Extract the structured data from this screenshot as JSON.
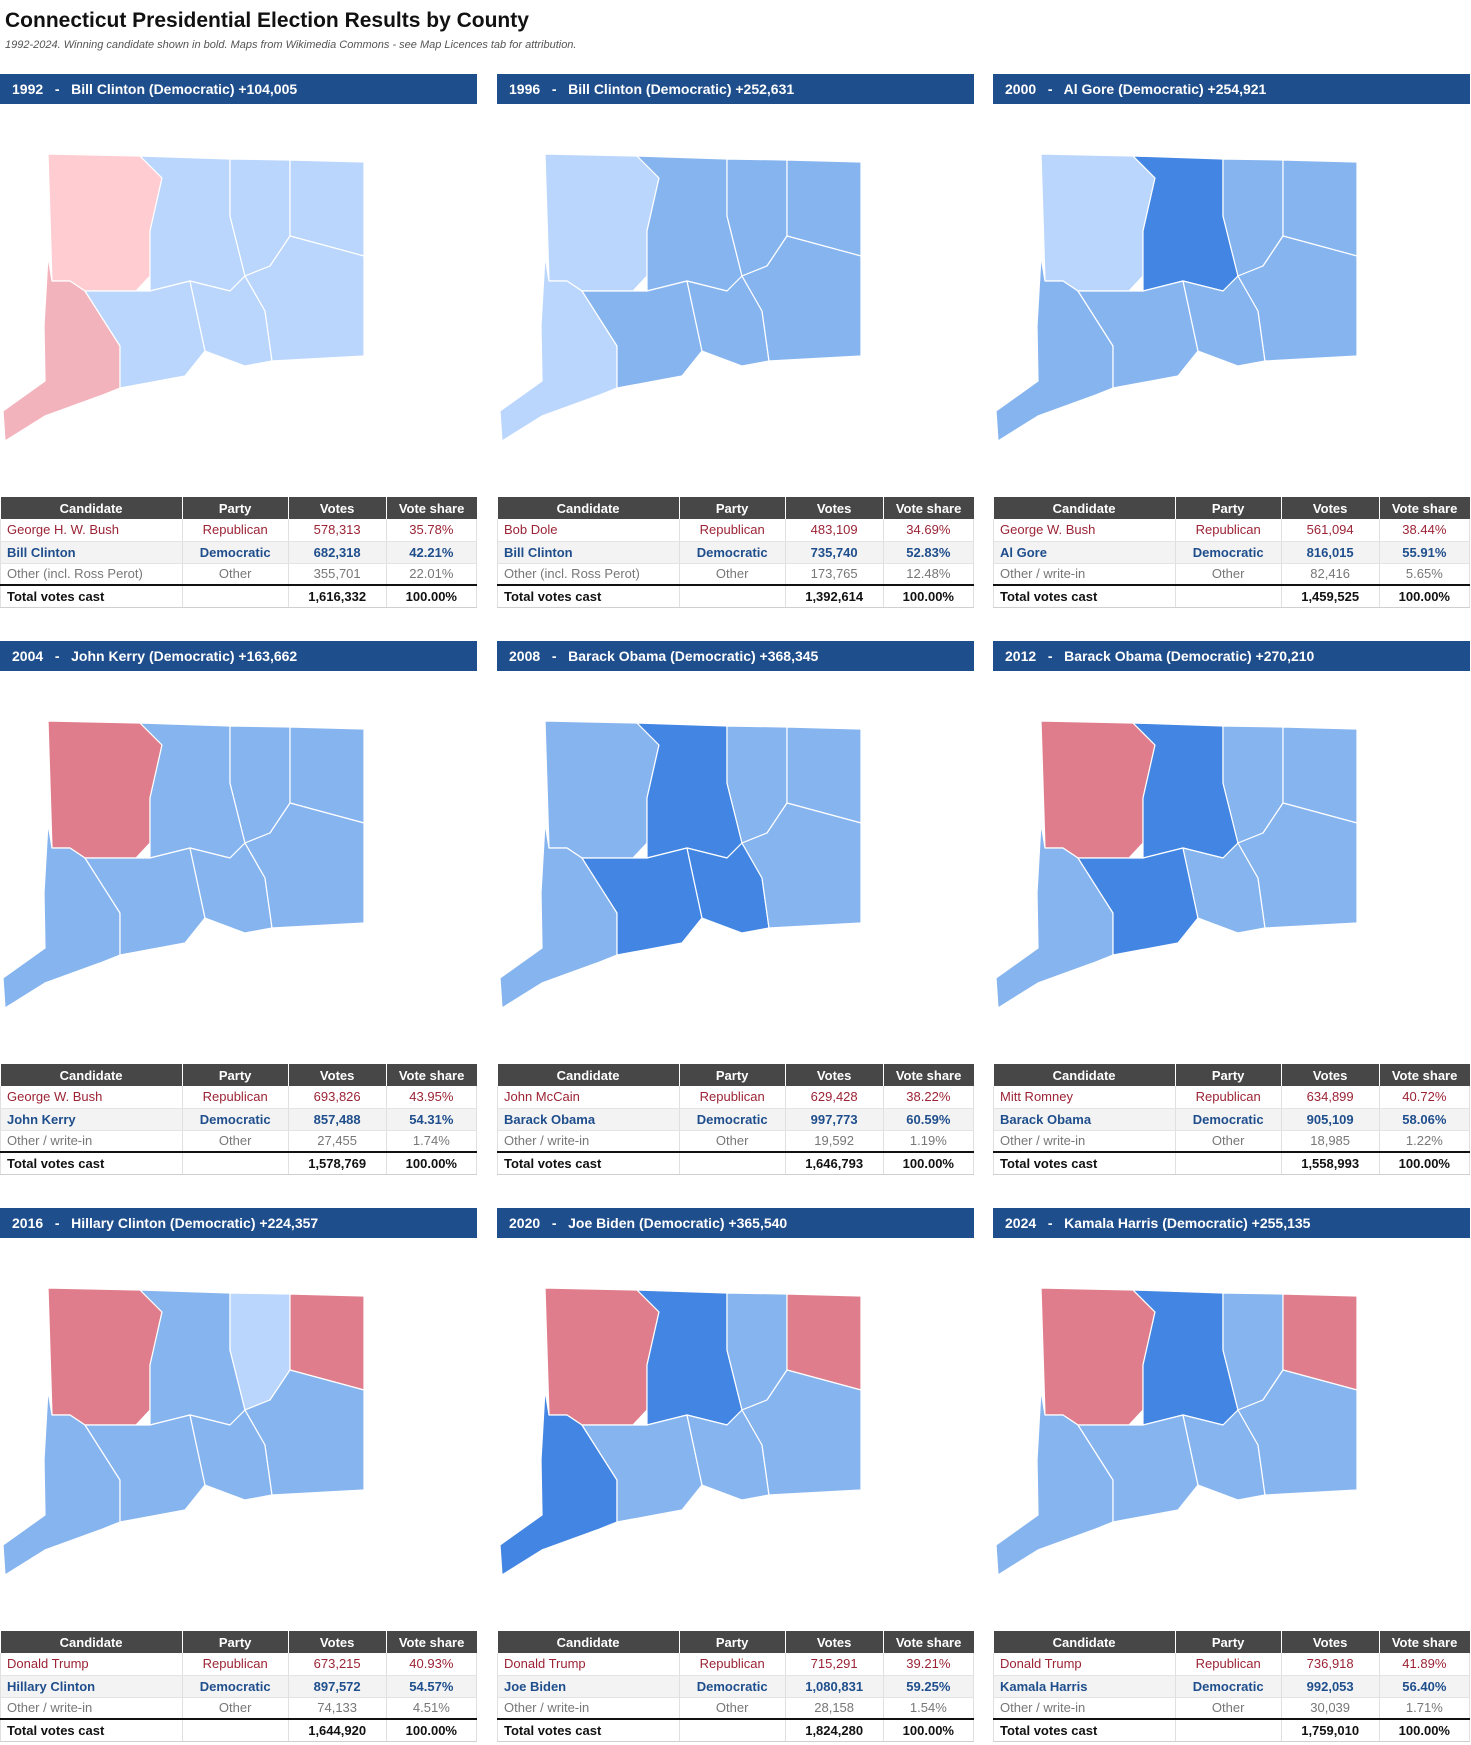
{
  "page": {
    "title": "Connecticut Presidential Election Results by County",
    "subtitle": "1992-2024. Winning candidate shown in bold. Maps from Wikimedia Commons - see Map Licences tab for attribution."
  },
  "table_headers": {
    "candidate": "Candidate",
    "party": "Party",
    "votes": "Votes",
    "share": "Vote share"
  },
  "colors": {
    "dem_dark": "#4385e2",
    "dem_mid": "#86b4ef",
    "dem_light": "#bad6fc",
    "rep_dark": "#e07d8c",
    "rep_light": "#f2b3bd",
    "rep_lightest": "#ffccd2",
    "banner": "#1f4e8c",
    "header_row": "#474747"
  },
  "elections": [
    {
      "banner": "1992   -   Bill Clinton (Democratic) +104,005",
      "counties": {
        "litchfield": "rep_lightest",
        "hartford": "dem_light",
        "tolland": "dem_light",
        "windham": "dem_light",
        "fairfield": "rep_light",
        "newhaven": "dem_light",
        "middlesex": "dem_light",
        "newlondon": "dem_light"
      },
      "rows": {
        "rep": {
          "candidate": "George H. W. Bush",
          "party": "Republican",
          "votes": "578,313",
          "share": "35.78%"
        },
        "dem": {
          "candidate": "Bill Clinton",
          "party": "Democratic",
          "votes": "682,318",
          "share": "42.21%"
        },
        "oth": {
          "candidate": "Other (incl. Ross Perot)",
          "party": "Other",
          "votes": "355,701",
          "share": "22.01%"
        },
        "tot": {
          "candidate": "Total votes cast",
          "votes": "1,616,332",
          "share": "100.00%"
        }
      }
    },
    {
      "banner": "1996   -   Bill Clinton (Democratic) +252,631",
      "counties": {
        "litchfield": "dem_light",
        "hartford": "dem_mid",
        "tolland": "dem_mid",
        "windham": "dem_mid",
        "fairfield": "dem_light",
        "newhaven": "dem_mid",
        "middlesex": "dem_mid",
        "newlondon": "dem_mid"
      },
      "rows": {
        "rep": {
          "candidate": "Bob Dole",
          "party": "Republican",
          "votes": "483,109",
          "share": "34.69%"
        },
        "dem": {
          "candidate": "Bill Clinton",
          "party": "Democratic",
          "votes": "735,740",
          "share": "52.83%"
        },
        "oth": {
          "candidate": "Other (incl. Ross Perot)",
          "party": "Other",
          "votes": "173,765",
          "share": "12.48%"
        },
        "tot": {
          "candidate": "Total votes cast",
          "votes": "1,392,614",
          "share": "100.00%"
        }
      }
    },
    {
      "banner": "2000   -   Al Gore (Democratic) +254,921",
      "counties": {
        "litchfield": "dem_light",
        "hartford": "dem_dark",
        "tolland": "dem_mid",
        "windham": "dem_mid",
        "fairfield": "dem_mid",
        "newhaven": "dem_mid",
        "middlesex": "dem_mid",
        "newlondon": "dem_mid"
      },
      "rows": {
        "rep": {
          "candidate": "George W. Bush",
          "party": "Republican",
          "votes": "561,094",
          "share": "38.44%"
        },
        "dem": {
          "candidate": "Al Gore",
          "party": "Democratic",
          "votes": "816,015",
          "share": "55.91%"
        },
        "oth": {
          "candidate": "Other / write-in",
          "party": "Other",
          "votes": "82,416",
          "share": "5.65%"
        },
        "tot": {
          "candidate": "Total votes cast",
          "votes": "1,459,525",
          "share": "100.00%"
        }
      }
    },
    {
      "banner": "2004   -   John Kerry (Democratic) +163,662",
      "counties": {
        "litchfield": "rep_dark",
        "hartford": "dem_mid",
        "tolland": "dem_mid",
        "windham": "dem_mid",
        "fairfield": "dem_mid",
        "newhaven": "dem_mid",
        "middlesex": "dem_mid",
        "newlondon": "dem_mid"
      },
      "rows": {
        "rep": {
          "candidate": "George W. Bush",
          "party": "Republican",
          "votes": "693,826",
          "share": "43.95%"
        },
        "dem": {
          "candidate": "John Kerry",
          "party": "Democratic",
          "votes": "857,488",
          "share": "54.31%"
        },
        "oth": {
          "candidate": "Other / write-in",
          "party": "Other",
          "votes": "27,455",
          "share": "1.74%"
        },
        "tot": {
          "candidate": "Total votes cast",
          "votes": "1,578,769",
          "share": "100.00%"
        }
      }
    },
    {
      "banner": "2008   -   Barack Obama (Democratic) +368,345",
      "counties": {
        "litchfield": "dem_mid",
        "hartford": "dem_dark",
        "tolland": "dem_mid",
        "windham": "dem_mid",
        "fairfield": "dem_mid",
        "newhaven": "dem_dark",
        "middlesex": "dem_dark",
        "newlondon": "dem_mid"
      },
      "rows": {
        "rep": {
          "candidate": "John McCain",
          "party": "Republican",
          "votes": "629,428",
          "share": "38.22%"
        },
        "dem": {
          "candidate": "Barack Obama",
          "party": "Democratic",
          "votes": "997,773",
          "share": "60.59%"
        },
        "oth": {
          "candidate": "Other / write-in",
          "party": "Other",
          "votes": "19,592",
          "share": "1.19%"
        },
        "tot": {
          "candidate": "Total votes cast",
          "votes": "1,646,793",
          "share": "100.00%"
        }
      }
    },
    {
      "banner": "2012   -   Barack Obama (Democratic) +270,210",
      "counties": {
        "litchfield": "rep_dark",
        "hartford": "dem_dark",
        "tolland": "dem_mid",
        "windham": "dem_mid",
        "fairfield": "dem_mid",
        "newhaven": "dem_dark",
        "middlesex": "dem_mid",
        "newlondon": "dem_mid"
      },
      "rows": {
        "rep": {
          "candidate": "Mitt Romney",
          "party": "Republican",
          "votes": "634,899",
          "share": "40.72%"
        },
        "dem": {
          "candidate": "Barack Obama",
          "party": "Democratic",
          "votes": "905,109",
          "share": "58.06%"
        },
        "oth": {
          "candidate": "Other / write-in",
          "party": "Other",
          "votes": "18,985",
          "share": "1.22%"
        },
        "tot": {
          "candidate": "Total votes cast",
          "votes": "1,558,993",
          "share": "100.00%"
        }
      }
    },
    {
      "banner": "2016   -   Hillary Clinton (Democratic) +224,357",
      "counties": {
        "litchfield": "rep_dark",
        "hartford": "dem_mid",
        "tolland": "dem_light",
        "windham": "rep_dark",
        "fairfield": "dem_mid",
        "newhaven": "dem_mid",
        "middlesex": "dem_mid",
        "newlondon": "dem_mid"
      },
      "rows": {
        "rep": {
          "candidate": "Donald Trump",
          "party": "Republican",
          "votes": "673,215",
          "share": "40.93%"
        },
        "dem": {
          "candidate": "Hillary Clinton",
          "party": "Democratic",
          "votes": "897,572",
          "share": "54.57%"
        },
        "oth": {
          "candidate": "Other / write-in",
          "party": "Other",
          "votes": "74,133",
          "share": "4.51%"
        },
        "tot": {
          "candidate": "Total votes cast",
          "votes": "1,644,920",
          "share": "100.00%"
        }
      }
    },
    {
      "banner": "2020   -   Joe Biden (Democratic) +365,540",
      "counties": {
        "litchfield": "rep_dark",
        "hartford": "dem_dark",
        "tolland": "dem_mid",
        "windham": "rep_dark",
        "fairfield": "dem_dark",
        "newhaven": "dem_mid",
        "middlesex": "dem_mid",
        "newlondon": "dem_mid"
      },
      "rows": {
        "rep": {
          "candidate": "Donald Trump",
          "party": "Republican",
          "votes": "715,291",
          "share": "39.21%"
        },
        "dem": {
          "candidate": "Joe Biden",
          "party": "Democratic",
          "votes": "1,080,831",
          "share": "59.25%"
        },
        "oth": {
          "candidate": "Other / write-in",
          "party": "Other",
          "votes": "28,158",
          "share": "1.54%"
        },
        "tot": {
          "candidate": "Total votes cast",
          "votes": "1,824,280",
          "share": "100.00%"
        }
      }
    },
    {
      "banner": "2024   -   Kamala Harris (Democratic) +255,135",
      "counties": {
        "litchfield": "rep_dark",
        "hartford": "dem_dark",
        "tolland": "dem_mid",
        "windham": "rep_dark",
        "fairfield": "dem_mid",
        "newhaven": "dem_mid",
        "middlesex": "dem_mid",
        "newlondon": "dem_mid"
      },
      "rows": {
        "rep": {
          "candidate": "Donald Trump",
          "party": "Republican",
          "votes": "736,918",
          "share": "41.89%"
        },
        "dem": {
          "candidate": "Kamala Harris",
          "party": "Democratic",
          "votes": "992,053",
          "share": "56.40%"
        },
        "oth": {
          "candidate": "Other / write-in",
          "party": "Other",
          "votes": "30,039",
          "share": "1.71%"
        },
        "tot": {
          "candidate": "Total votes cast",
          "votes": "1,759,010",
          "share": "100.00%"
        }
      }
    }
  ]
}
